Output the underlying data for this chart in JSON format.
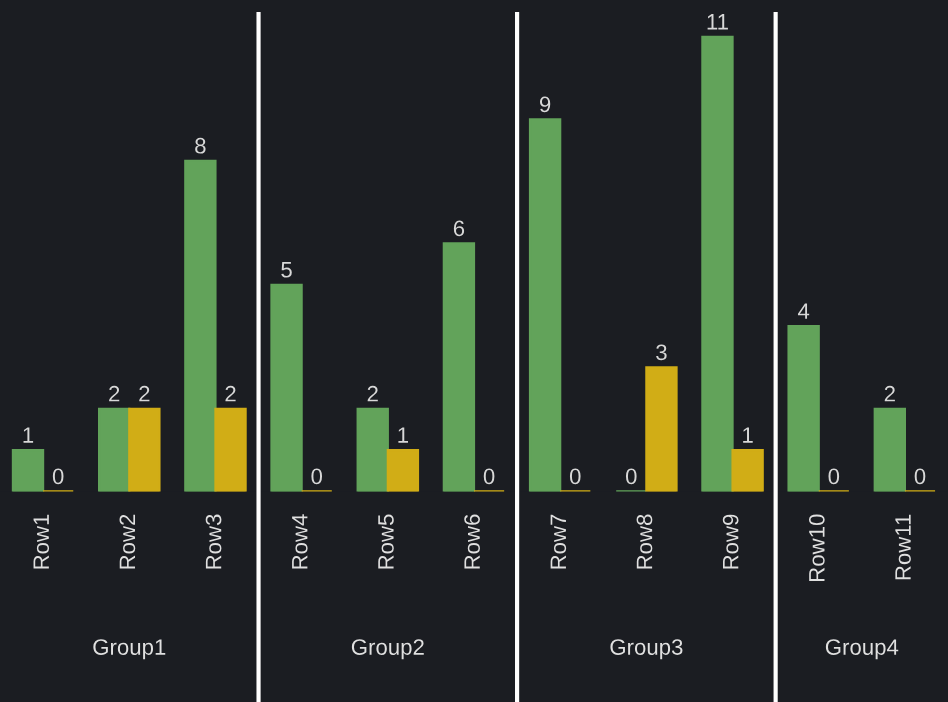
{
  "chart_data": [
    {
      "type": "bar",
      "xlabel": "Group1",
      "categories": [
        "Row1",
        "Row2",
        "Row3"
      ],
      "data_labels": true,
      "series": [
        {
          "color": "#62a35a",
          "values": [
            1,
            2,
            8
          ]
        },
        {
          "color": "#d1ad16",
          "values": [
            0,
            2,
            2
          ]
        }
      ]
    },
    {
      "type": "bar",
      "xlabel": "Group2",
      "categories": [
        "Row4",
        "Row5",
        "Row6"
      ],
      "data_labels": true,
      "series": [
        {
          "color": "#62a35a",
          "values": [
            5,
            2,
            6
          ]
        },
        {
          "color": "#d1ad16",
          "values": [
            0,
            1,
            0
          ]
        }
      ]
    },
    {
      "type": "bar",
      "xlabel": "Group3",
      "categories": [
        "Row7",
        "Row8",
        "Row9"
      ],
      "data_labels": true,
      "series": [
        {
          "color": "#62a35a",
          "values": [
            9,
            0,
            11
          ]
        },
        {
          "color": "#d1ad16",
          "values": [
            0,
            3,
            1
          ]
        }
      ]
    },
    {
      "type": "bar",
      "xlabel": "Group4",
      "categories": [
        "Row10",
        "Row11"
      ],
      "data_labels": true,
      "series": [
        {
          "color": "#62a35a",
          "values": [
            4,
            2
          ]
        },
        {
          "color": "#d1ad16",
          "values": [
            0,
            0
          ]
        }
      ]
    }
  ]
}
